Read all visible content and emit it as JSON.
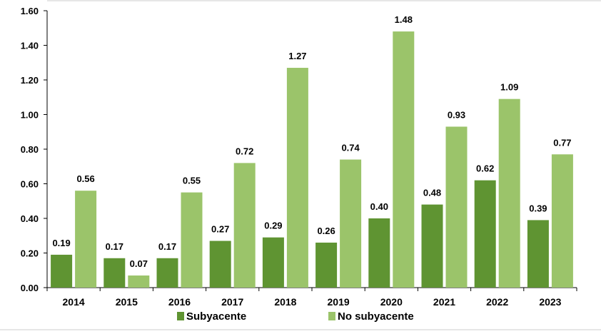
{
  "chart_data": {
    "type": "bar",
    "title": "",
    "xlabel": "",
    "ylabel": "",
    "ylim": [
      0,
      1.6
    ],
    "ytick_step": 0.2,
    "grid": false,
    "legend_position": "bottom",
    "categories": [
      "2014",
      "2015",
      "2016",
      "2017",
      "2018",
      "2019",
      "2020",
      "2021",
      "2022",
      "2023"
    ],
    "series": [
      {
        "name": "Subyacente",
        "color": "#5f9432",
        "values": [
          0.19,
          0.17,
          0.17,
          0.27,
          0.29,
          0.26,
          0.4,
          0.48,
          0.62,
          0.39
        ],
        "labels": [
          "0.19",
          "0.17",
          "0.17",
          "0.27",
          "0.29",
          "0.26",
          "0.40",
          "0.48",
          "0.62",
          "0.39"
        ]
      },
      {
        "name": "No subyacente",
        "color": "#9bc46a",
        "values": [
          0.56,
          0.07,
          0.55,
          0.72,
          1.27,
          0.74,
          1.48,
          0.93,
          1.09,
          0.77
        ],
        "labels": [
          "0.56",
          "0.07",
          "0.55",
          "0.72",
          "1.27",
          "0.74",
          "1.48",
          "0.93",
          "1.09",
          "0.77"
        ]
      }
    ],
    "yticks": [
      "0.00",
      "0.20",
      "0.40",
      "0.60",
      "0.80",
      "1.00",
      "1.20",
      "1.40",
      "1.60"
    ]
  }
}
